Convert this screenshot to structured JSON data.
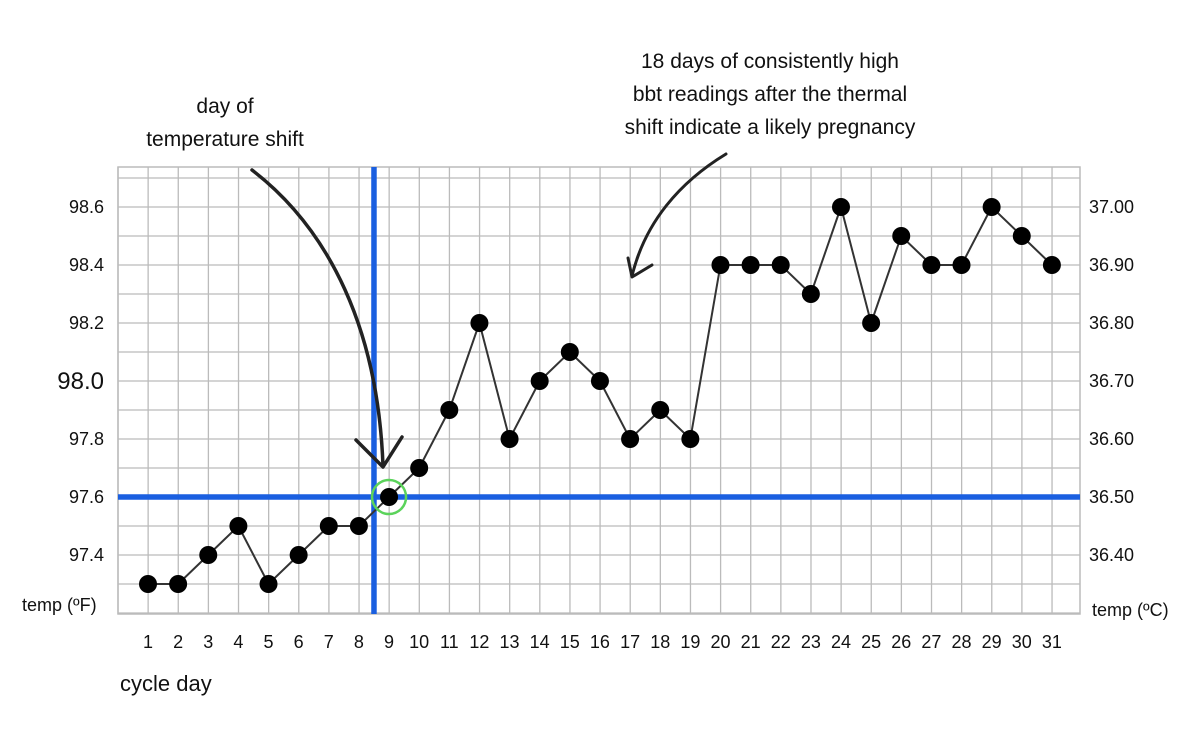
{
  "annotations": {
    "shift_day": [
      "day of",
      "temperature shift"
    ],
    "pregnancy": [
      "18 days of consistently high",
      "bbt readings after the thermal",
      "shift indicate a likely pregnancy"
    ]
  },
  "chart_data": {
    "type": "line",
    "x": [
      1,
      2,
      3,
      4,
      5,
      6,
      7,
      8,
      9,
      10,
      11,
      12,
      13,
      14,
      15,
      16,
      17,
      18,
      19,
      20,
      21,
      22,
      23,
      24,
      25,
      26,
      27,
      28,
      29,
      30,
      31
    ],
    "y": [
      97.3,
      97.3,
      97.4,
      97.5,
      97.3,
      97.4,
      97.5,
      97.5,
      97.6,
      97.7,
      97.9,
      98.2,
      97.8,
      98.0,
      98.1,
      98.0,
      97.8,
      97.9,
      97.8,
      98.4,
      98.4,
      98.4,
      98.3,
      98.6,
      98.2,
      98.5,
      98.4,
      98.4,
      98.6,
      98.5,
      98.4
    ],
    "xlabel": "cycle day",
    "ylabel": "temp (ºF)",
    "y2label": "temp (ºC)",
    "xlim": [
      1,
      31
    ],
    "ylim": [
      97.3,
      98.6
    ],
    "left_ticks": [
      {
        "value": 98.6,
        "label": "98.6"
      },
      {
        "value": 98.4,
        "label": "98.4"
      },
      {
        "value": 98.2,
        "label": "98.2"
      },
      {
        "value": 98.0,
        "label": "98.0",
        "emphasis": true
      },
      {
        "value": 97.8,
        "label": "97.8"
      },
      {
        "value": 97.6,
        "label": "97.6"
      },
      {
        "value": 97.4,
        "label": "97.4"
      }
    ],
    "right_ticks": [
      {
        "value": 98.6,
        "label": "37.00"
      },
      {
        "value": 98.4,
        "label": "36.90"
      },
      {
        "value": 98.2,
        "label": "36.80"
      },
      {
        "value": 98.0,
        "label": "36.70"
      },
      {
        "value": 97.8,
        "label": "36.60"
      },
      {
        "value": 97.6,
        "label": "36.50"
      },
      {
        "value": 97.4,
        "label": "36.40"
      }
    ],
    "coverline": {
      "value": 97.6,
      "color": "#1a5fe0"
    },
    "shift_day": {
      "day": 8.5,
      "color": "#1a5fe0"
    },
    "highlight_point": {
      "day": 9,
      "color": "#5bd35b"
    },
    "grid": true,
    "point_color": "#000000",
    "line_color": "#333333",
    "grid_color": "#bbbbbb"
  }
}
